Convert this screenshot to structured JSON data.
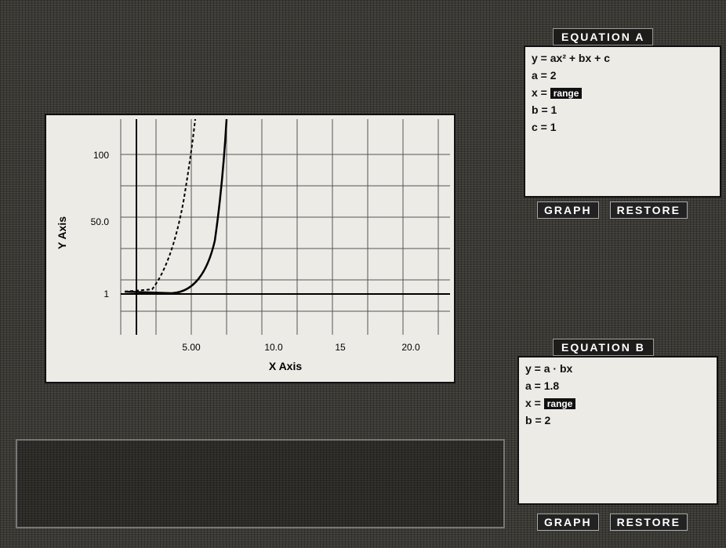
{
  "graph": {
    "y_axis_label": "Y Axis",
    "x_axis_label": "X Axis",
    "y_ticks": [
      "100",
      "50.0",
      "1"
    ],
    "x_ticks": [
      "5.00",
      "10.0",
      "15",
      "20.0"
    ]
  },
  "equation_a": {
    "title": "EQUATION A",
    "formula": "y = ax² + bx + c",
    "rows": [
      {
        "name": "a =",
        "value": "2"
      },
      {
        "name": "x =",
        "value": "range"
      },
      {
        "name": "b =",
        "value": "1"
      },
      {
        "name": "c =",
        "value": "1"
      }
    ],
    "buttons": [
      "GRAPH",
      "RESTORE"
    ]
  },
  "equation_b": {
    "title": "EQUATION B",
    "formula": "y = a · bx",
    "rows": [
      {
        "name": "a =",
        "value": "1.8"
      },
      {
        "name": "x =",
        "value": "range"
      },
      {
        "name": "b =",
        "value": "2"
      }
    ],
    "buttons": [
      "GRAPH",
      "RESTORE"
    ]
  }
}
